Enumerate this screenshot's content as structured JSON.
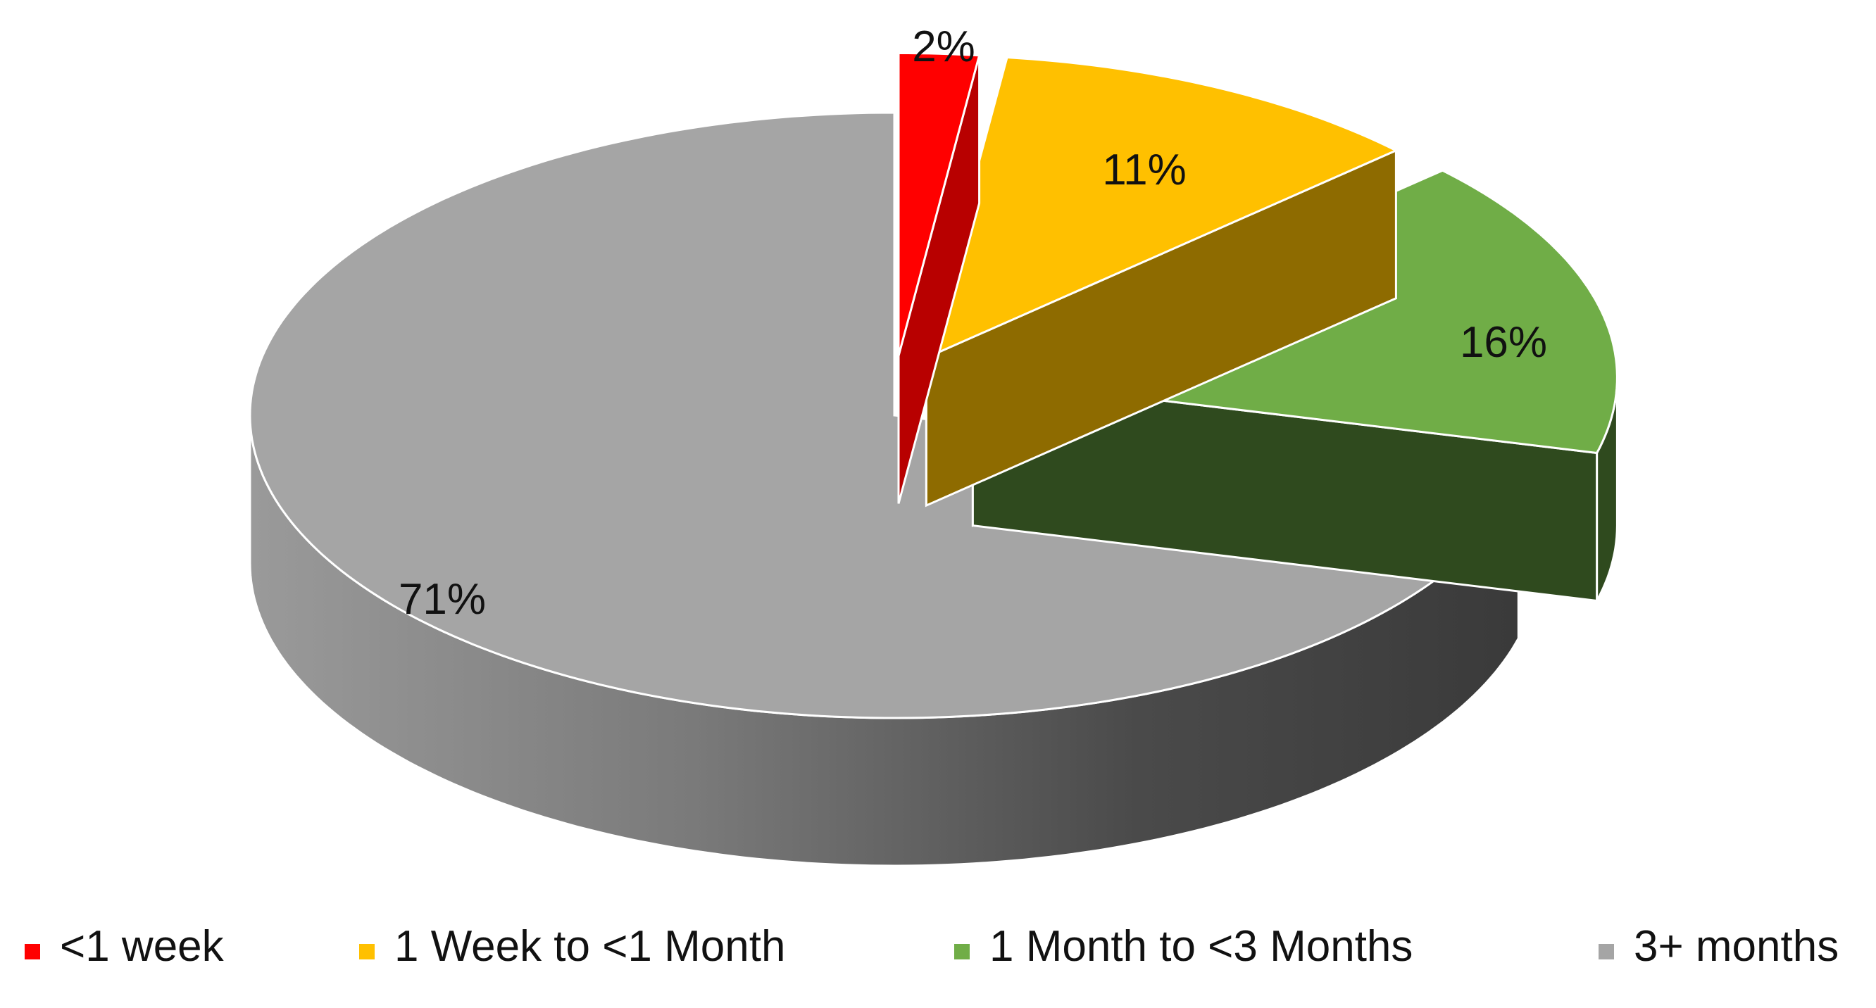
{
  "chart_data": {
    "type": "pie",
    "title": "",
    "categories": [
      "<1 week",
      "1 Week to <1 Month",
      "1 Month to <3 Months",
      "3+ months"
    ],
    "values": [
      2,
      11,
      16,
      71
    ],
    "labels": [
      "2%",
      "11%",
      "16%",
      "71%"
    ],
    "colors": [
      "#FF0000",
      "#FFC000",
      "#70AD47",
      "#A5A5A5"
    ],
    "legend_position": "bottom",
    "style": "3d-exploded"
  }
}
